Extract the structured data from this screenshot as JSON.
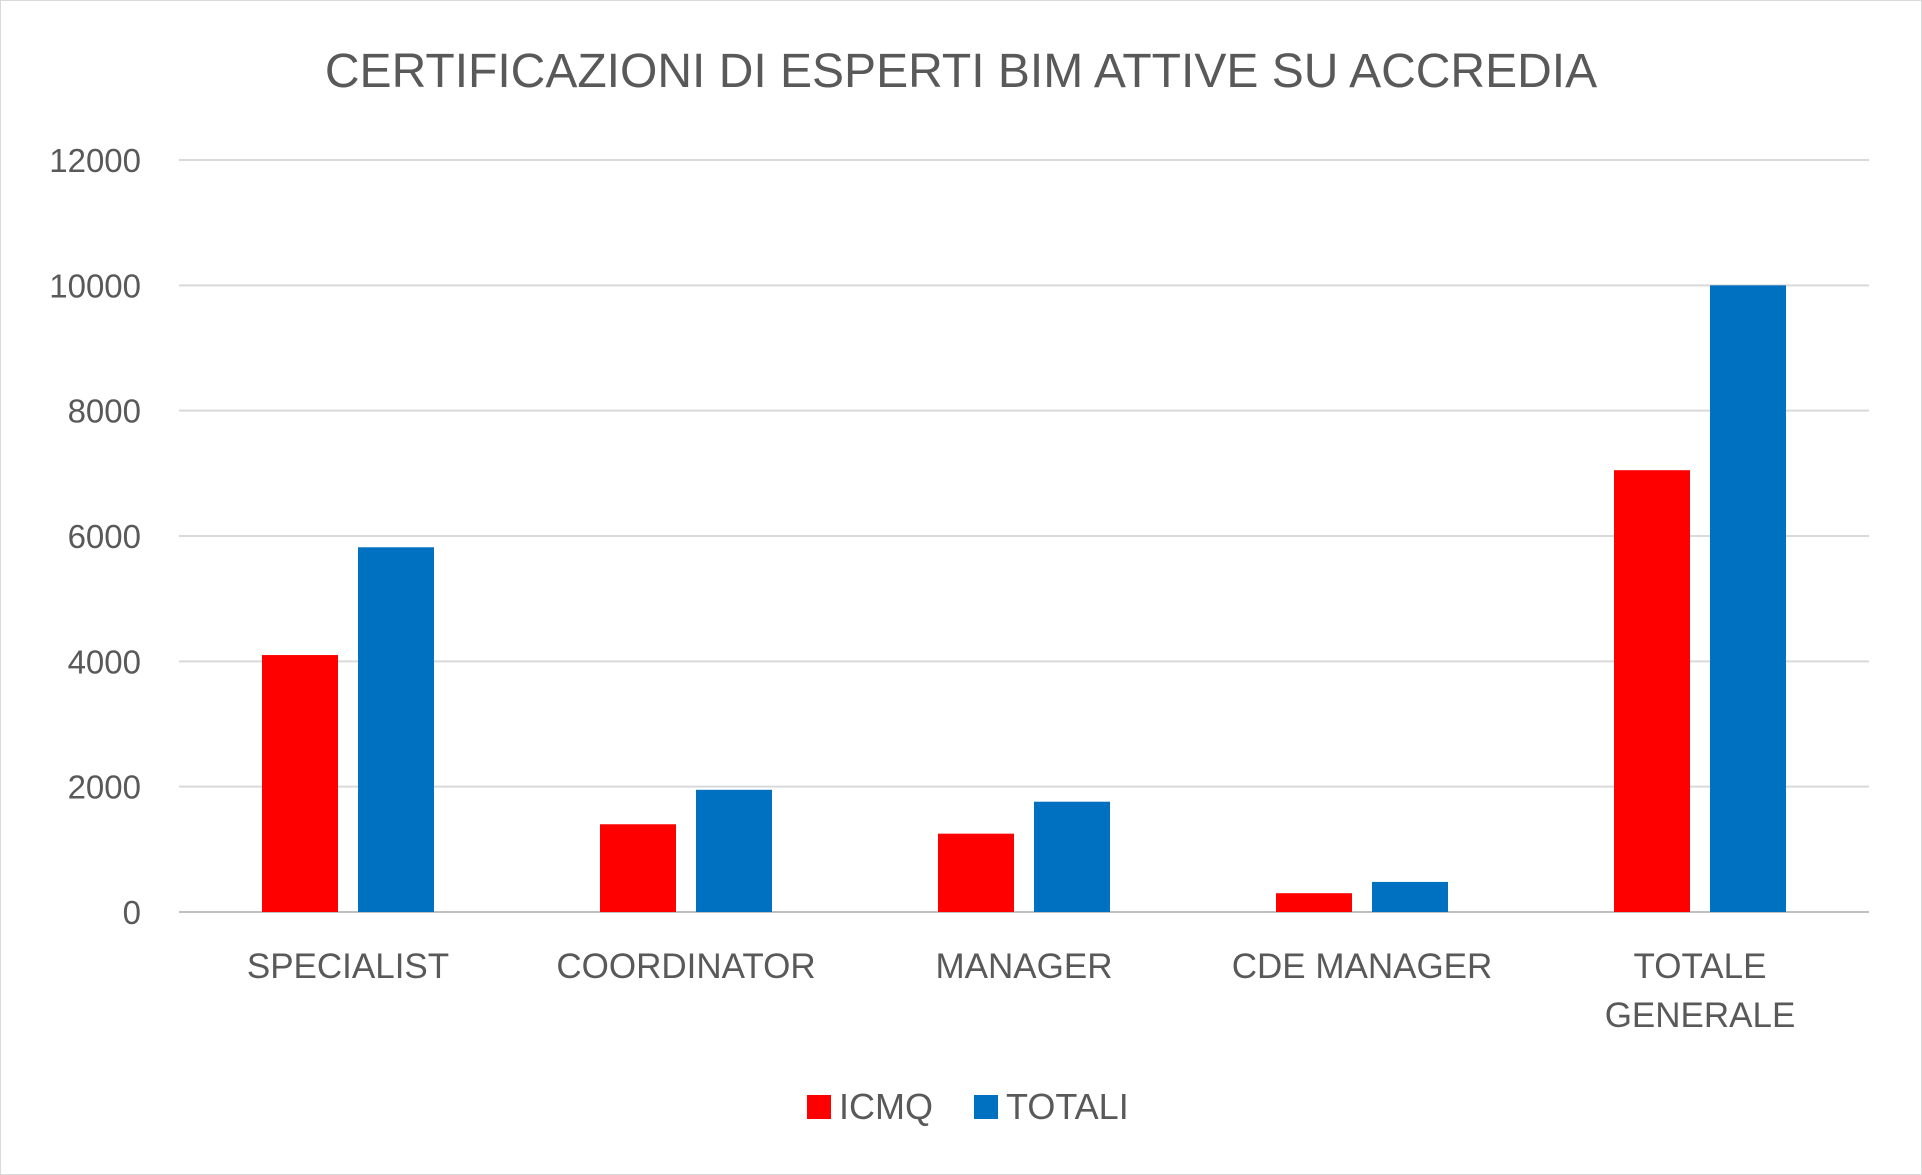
{
  "chart_data": {
    "type": "bar",
    "title": "CERTIFICAZIONI DI ESPERTI BIM ATTIVE SU ACCREDIA",
    "categories": [
      [
        "SPECIALIST"
      ],
      [
        "COORDINATOR"
      ],
      [
        "MANAGER"
      ],
      [
        "CDE MANAGER"
      ],
      [
        "TOTALE",
        "GENERALE"
      ]
    ],
    "series": [
      {
        "name": "ICMQ",
        "color": "#ff0000",
        "values": [
          4100,
          1400,
          1250,
          300,
          7050
        ]
      },
      {
        "name": "TOTALI",
        "color": "#0070c0",
        "values": [
          5820,
          1950,
          1760,
          480,
          10000
        ]
      }
    ],
    "ylim": [
      0,
      12000
    ],
    "yticks": [
      "0",
      "2000",
      "4000",
      "6000",
      "8000",
      "10000",
      "12000"
    ],
    "grid": true,
    "legend": "bottom-center"
  }
}
